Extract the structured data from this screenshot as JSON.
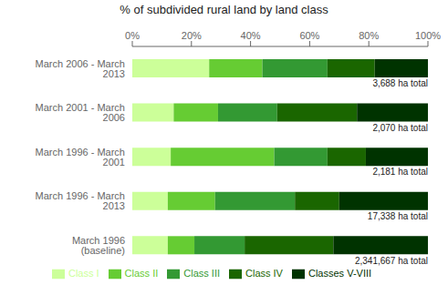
{
  "chart_data": {
    "type": "bar",
    "title": "% of subdivided rural land by land class",
    "orientation": "horizontal",
    "stacked": true,
    "categories": [
      "March 2006 - March 2013",
      "March 2001 - March 2006",
      "March 1996 - March 2001",
      "March 1996 - March 2013",
      "March 1996 (baseline)"
    ],
    "series": [
      {
        "name": "Class I",
        "color": "#ccff99",
        "values": [
          26,
          14,
          13,
          12,
          12
        ]
      },
      {
        "name": "Class II",
        "color": "#66cc33",
        "values": [
          18,
          15,
          35,
          16,
          9
        ]
      },
      {
        "name": "Class III",
        "color": "#339933",
        "values": [
          22,
          20,
          18,
          27,
          17
        ]
      },
      {
        "name": "Class IV",
        "color": "#1a6600",
        "values": [
          16,
          27,
          13,
          15,
          30
        ]
      },
      {
        "name": "Classes V-VIII",
        "color": "#003300",
        "values": [
          18,
          24,
          21,
          30,
          32
        ]
      }
    ],
    "annotations": [
      "3,688 ha total",
      "2,070 ha total",
      "2,181 ha total",
      "17,338 ha total",
      "2,341,667 ha total"
    ],
    "xlim": [
      0,
      100
    ],
    "xticks": [
      {
        "value": 0,
        "label": "0%"
      },
      {
        "value": 20,
        "label": "20%"
      },
      {
        "value": 40,
        "label": "40%"
      },
      {
        "value": 60,
        "label": "60%"
      },
      {
        "value": 80,
        "label": "80%"
      },
      {
        "value": 100,
        "label": "100%"
      }
    ],
    "grid": false,
    "legend": "bottom"
  }
}
